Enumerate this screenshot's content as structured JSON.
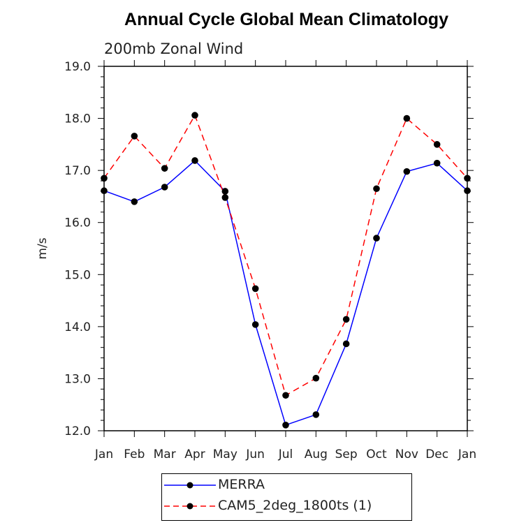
{
  "chart_data": {
    "type": "line",
    "title": "Annual Cycle Global Mean Climatology",
    "subtitle": "200mb Zonal Wind",
    "xlabel": "",
    "ylabel": "m/s",
    "categories": [
      "Jan",
      "Feb",
      "Mar",
      "Apr",
      "May",
      "Jun",
      "Jul",
      "Aug",
      "Sep",
      "Oct",
      "Nov",
      "Dec",
      "Jan"
    ],
    "ylim": [
      12.0,
      19.0
    ],
    "yticks": [
      "12.0",
      "13.0",
      "14.0",
      "15.0",
      "16.0",
      "17.0",
      "18.0",
      "19.0"
    ],
    "grid": false,
    "legend_position": "bottom",
    "series": [
      {
        "name": "MERRA",
        "color": "#0000ff",
        "line_style": "solid",
        "marker": "filled-circle",
        "values": [
          16.61,
          16.4,
          16.68,
          17.19,
          16.6,
          14.04,
          12.11,
          12.31,
          13.67,
          15.7,
          16.98,
          17.14,
          16.61
        ]
      },
      {
        "name": "CAM5_2deg_1800ts (1)",
        "color": "#ff0000",
        "line_style": "dashed",
        "marker": "filled-circle",
        "values": [
          16.85,
          17.66,
          17.04,
          18.06,
          16.48,
          14.73,
          12.68,
          13.01,
          14.14,
          16.65,
          18.0,
          17.5,
          16.85
        ]
      }
    ]
  }
}
